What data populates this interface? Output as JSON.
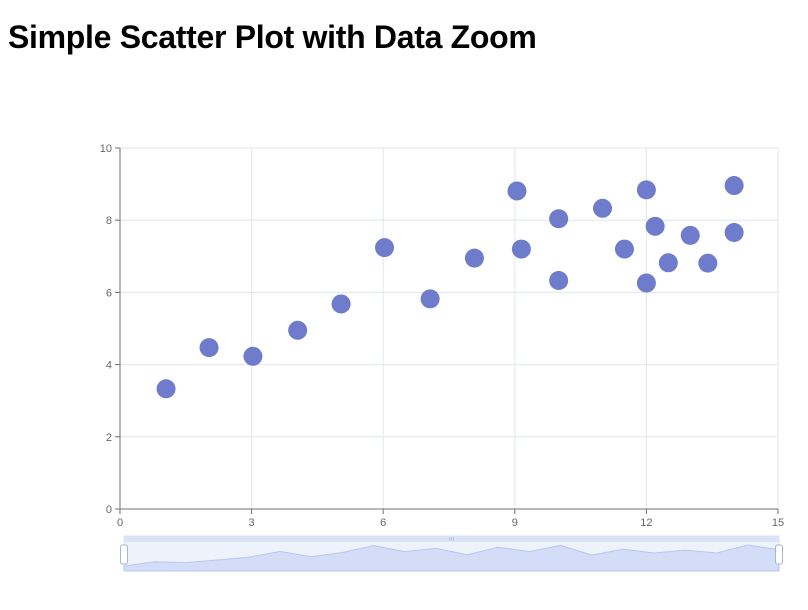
{
  "page": {
    "title": "Simple Scatter Plot with Data Zoom"
  },
  "colors": {
    "point": "#6e7ccb",
    "axis": "#6e7079",
    "grid": "#e0e6f1",
    "tick_text": "#666666",
    "zoom_fill": "#d3ddf8",
    "zoom_band": "#dbe3f4",
    "zoom_line": "#b8c7f0",
    "zoom_handle": "#a7b7cc"
  },
  "chart_data": {
    "type": "scatter",
    "title": "Simple Scatter Plot with Data Zoom",
    "xlabel": "",
    "ylabel": "",
    "xlim": [
      0,
      15
    ],
    "ylim": [
      0,
      10
    ],
    "x_ticks": [
      "0",
      "3",
      "6",
      "9",
      "12",
      "15"
    ],
    "y_ticks": [
      "0",
      "2",
      "4",
      "6",
      "8",
      "10"
    ],
    "grid": true,
    "legend": "none",
    "data_zoom": {
      "type": "slider",
      "range": [
        0,
        15
      ]
    },
    "points": [
      {
        "x": 1.05,
        "y": 3.33
      },
      {
        "x": 2.03,
        "y": 4.47
      },
      {
        "x": 3.03,
        "y": 4.23
      },
      {
        "x": 4.05,
        "y": 4.95
      },
      {
        "x": 5.04,
        "y": 5.68
      },
      {
        "x": 6.03,
        "y": 7.24
      },
      {
        "x": 7.07,
        "y": 5.82
      },
      {
        "x": 8.08,
        "y": 6.95
      },
      {
        "x": 9.05,
        "y": 8.81
      },
      {
        "x": 9.15,
        "y": 7.2
      },
      {
        "x": 10.0,
        "y": 8.04
      },
      {
        "x": 10.0,
        "y": 6.33
      },
      {
        "x": 11.0,
        "y": 8.33
      },
      {
        "x": 11.5,
        "y": 7.2
      },
      {
        "x": 12.0,
        "y": 8.84
      },
      {
        "x": 12.0,
        "y": 6.26
      },
      {
        "x": 12.2,
        "y": 7.83
      },
      {
        "x": 12.5,
        "y": 6.82
      },
      {
        "x": 13.0,
        "y": 7.58
      },
      {
        "x": 13.4,
        "y": 6.81
      },
      {
        "x": 14.0,
        "y": 8.96
      },
      {
        "x": 14.0,
        "y": 7.66
      }
    ]
  }
}
